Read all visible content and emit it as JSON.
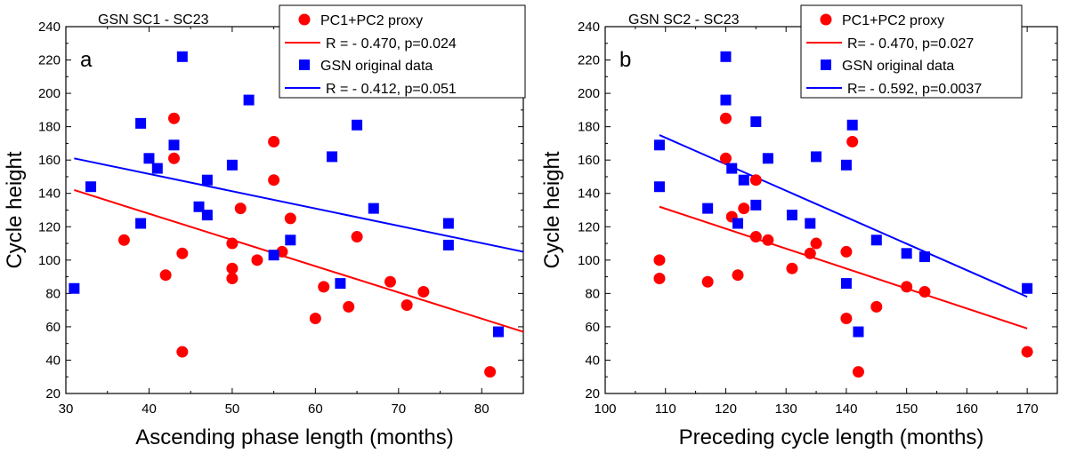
{
  "chart_data": [
    {
      "type": "scatter",
      "panel": "a",
      "title": "GSN SC1 - SC23",
      "xlabel": "Ascending phase length (months)",
      "ylabel": "Cycle height",
      "xlim": [
        30,
        85
      ],
      "ylim": [
        20,
        240
      ],
      "xticks": [
        30,
        40,
        50,
        60,
        70,
        80
      ],
      "yticks": [
        20,
        40,
        60,
        80,
        100,
        120,
        140,
        160,
        180,
        200,
        220,
        240
      ],
      "legend_position": "top-right",
      "series": [
        {
          "name": "PC1+PC2 proxy",
          "marker": "circle",
          "color": "#ff0000",
          "points": [
            [
              37,
              112
            ],
            [
              42,
              91
            ],
            [
              43,
              185
            ],
            [
              43,
              161
            ],
            [
              44,
              104
            ],
            [
              44,
              45
            ],
            [
              50,
              110
            ],
            [
              50,
              95
            ],
            [
              50,
              89
            ],
            [
              51,
              131
            ],
            [
              53,
              100
            ],
            [
              55,
              171
            ],
            [
              55,
              148
            ],
            [
              56,
              105
            ],
            [
              57,
              125
            ],
            [
              60,
              65
            ],
            [
              61,
              84
            ],
            [
              64,
              72
            ],
            [
              65,
              114
            ],
            [
              69,
              87
            ],
            [
              71,
              73
            ],
            [
              73,
              81
            ],
            [
              81,
              33
            ]
          ]
        },
        {
          "name": "GSN original data",
          "marker": "square",
          "color": "#0000ff",
          "points": [
            [
              31,
              83
            ],
            [
              33,
              144
            ],
            [
              39,
              182
            ],
            [
              39,
              122
            ],
            [
              40,
              161
            ],
            [
              41,
              155
            ],
            [
              43,
              169
            ],
            [
              44,
              222
            ],
            [
              46,
              132
            ],
            [
              47,
              148
            ],
            [
              47,
              127
            ],
            [
              50,
              157
            ],
            [
              52,
              196
            ],
            [
              55,
              103
            ],
            [
              57,
              112
            ],
            [
              62,
              162
            ],
            [
              63,
              86
            ],
            [
              65,
              181
            ],
            [
              67,
              131
            ],
            [
              76,
              122
            ],
            [
              76,
              109
            ],
            [
              82,
              57
            ]
          ]
        }
      ],
      "fits": [
        {
          "label": "R = - 0.470, p=0.024",
          "color": "#ff0000",
          "x": [
            31,
            85
          ],
          "y": [
            142,
            57
          ]
        },
        {
          "label": "R = - 0.412, p=0.051",
          "color": "#0000ff",
          "x": [
            31,
            85
          ],
          "y": [
            161,
            105
          ]
        }
      ]
    },
    {
      "type": "scatter",
      "panel": "b",
      "title": "GSN SC2 - SC23",
      "xlabel": "Preceding cycle length (months)",
      "ylabel": "Cycle height",
      "xlim": [
        100,
        175
      ],
      "ylim": [
        20,
        240
      ],
      "xticks": [
        100,
        110,
        120,
        130,
        140,
        150,
        160,
        170
      ],
      "yticks": [
        20,
        40,
        60,
        80,
        100,
        120,
        140,
        160,
        180,
        200,
        220,
        240
      ],
      "legend_position": "top-right",
      "series": [
        {
          "name": "PC1+PC2 proxy",
          "marker": "circle",
          "color": "#ff0000",
          "points": [
            [
              109,
              100
            ],
            [
              109,
              89
            ],
            [
              117,
              87
            ],
            [
              120,
              185
            ],
            [
              120,
              161
            ],
            [
              121,
              126
            ],
            [
              122,
              91
            ],
            [
              123,
              131
            ],
            [
              125,
              148
            ],
            [
              125,
              114
            ],
            [
              127,
              112
            ],
            [
              131,
              95
            ],
            [
              134,
              104
            ],
            [
              135,
              110
            ],
            [
              140,
              105
            ],
            [
              140,
              65
            ],
            [
              141,
              171
            ],
            [
              142,
              33
            ],
            [
              145,
              72
            ],
            [
              150,
              84
            ],
            [
              153,
              81
            ],
            [
              170,
              45
            ]
          ]
        },
        {
          "name": "GSN original data",
          "marker": "square",
          "color": "#0000ff",
          "points": [
            [
              109,
              169
            ],
            [
              109,
              144
            ],
            [
              117,
              131
            ],
            [
              120,
              222
            ],
            [
              120,
              196
            ],
            [
              121,
              155
            ],
            [
              122,
              122
            ],
            [
              123,
              148
            ],
            [
              125,
              183
            ],
            [
              125,
              133
            ],
            [
              127,
              161
            ],
            [
              131,
              127
            ],
            [
              134,
              122
            ],
            [
              135,
              162
            ],
            [
              140,
              157
            ],
            [
              140,
              86
            ],
            [
              141,
              181
            ],
            [
              142,
              57
            ],
            [
              145,
              112
            ],
            [
              150,
              104
            ],
            [
              153,
              102
            ],
            [
              170,
              83
            ]
          ]
        }
      ],
      "fits": [
        {
          "label": "R= - 0.470, p=0.027",
          "color": "#ff0000",
          "x": [
            109,
            170
          ],
          "y": [
            132,
            59
          ]
        },
        {
          "label": "R= - 0.592, p=0.0037",
          "color": "#0000ff",
          "x": [
            109,
            170
          ],
          "y": [
            175,
            78
          ]
        }
      ]
    }
  ]
}
